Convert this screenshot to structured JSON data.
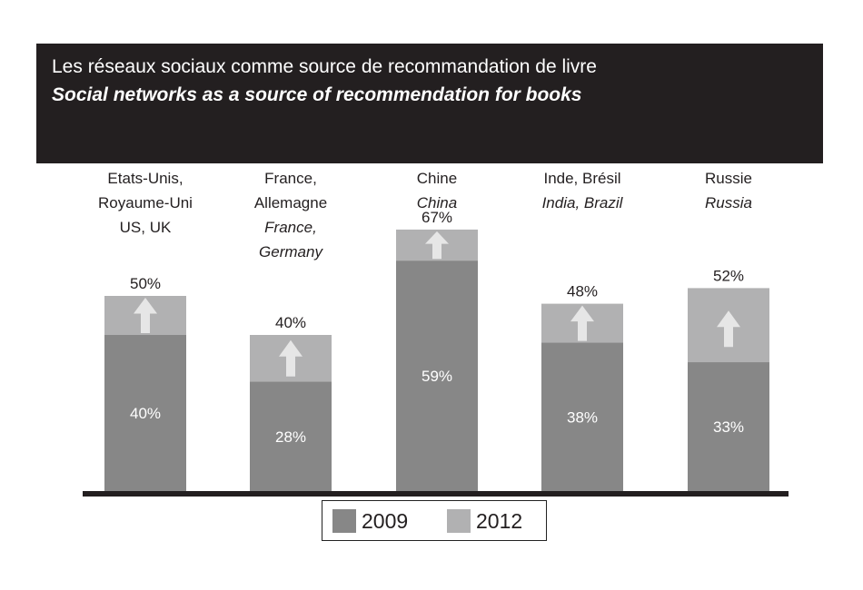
{
  "header": {
    "title": "Les réseaux sociaux comme source de recommandation de livre",
    "subtitle": "Social networks as a source of recommendation for books"
  },
  "colors": {
    "series_2009": "#878787",
    "series_2012": "#b1b1b2",
    "arrow": "#e6e6e6",
    "header_bg": "#231f20",
    "baseline": "#231f20"
  },
  "legend": {
    "items": [
      {
        "label": "2009"
      },
      {
        "label": "2012"
      }
    ]
  },
  "chart_data": {
    "type": "bar",
    "stacked": false,
    "categories": [
      {
        "label_fr": [
          "Etats-Unis,",
          "Royaume-Uni"
        ],
        "label_en": [
          "US, UK"
        ],
        "en_italic": false
      },
      {
        "label_fr": [
          "France,",
          "Allemagne"
        ],
        "label_en": [
          "France,",
          "Germany"
        ],
        "en_italic": true
      },
      {
        "label_fr": [
          "Chine"
        ],
        "label_en": [
          "China"
        ],
        "en_italic": true
      },
      {
        "label_fr": [
          "Inde, Brésil"
        ],
        "label_en": [
          "India, Brazil"
        ],
        "en_italic": true
      },
      {
        "label_fr": [
          "Russie"
        ],
        "label_en": [
          "Russia"
        ],
        "en_italic": true
      }
    ],
    "series": [
      {
        "name": "2009",
        "values": [
          40,
          28,
          59,
          38,
          33
        ],
        "labels": [
          "40%",
          "28%",
          "59%",
          "38%",
          "33%"
        ]
      },
      {
        "name": "2012",
        "values": [
          50,
          40,
          67,
          48,
          52
        ],
        "labels": [
          "50%",
          "40%",
          "67%",
          "48%",
          "52%"
        ]
      }
    ],
    "ylim": [
      0,
      75
    ],
    "grid": false,
    "legend_position": "bottom-center"
  }
}
